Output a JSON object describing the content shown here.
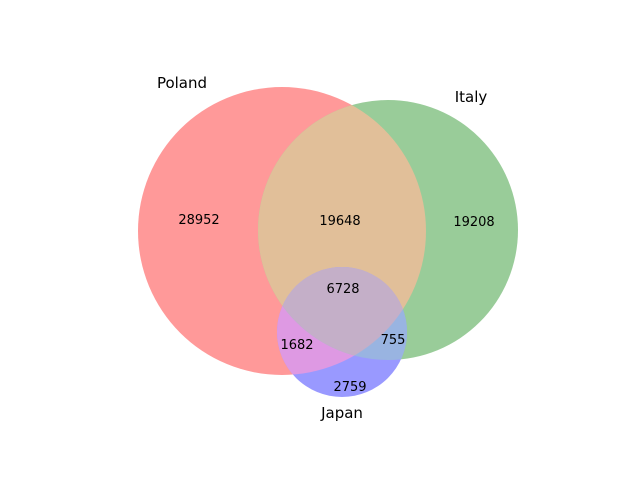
{
  "sets": [
    {
      "name": "Poland",
      "color": "#ff9999"
    },
    {
      "name": "Italy",
      "color": "#99cc99"
    },
    {
      "name": "Japan",
      "color": "#9999ff"
    }
  ],
  "regions": {
    "poland_only": "28952",
    "italy_only": "19208",
    "japan_only": "2759",
    "poland_italy": "19648",
    "poland_japan": "1682",
    "italy_japan": "755",
    "all_three": "6728"
  },
  "overlap_colors": {
    "poland_italy": "#e1bf99",
    "poland_japan": "#de99e3",
    "italy_japan": "#99b4e1",
    "all_three": "#c4afc8"
  }
}
